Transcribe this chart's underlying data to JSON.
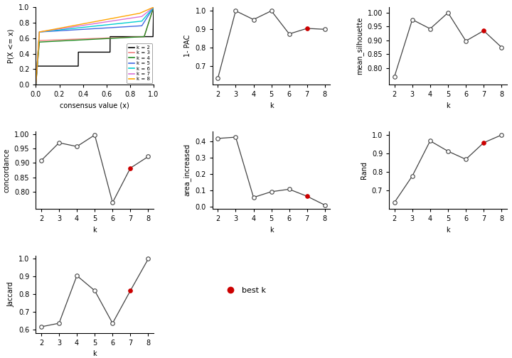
{
  "ecdf_colors": {
    "k2": "#000000",
    "k3": "#F08080",
    "k4": "#228B22",
    "k5": "#4169E1",
    "k6": "#00CED1",
    "k7": "#DA70D6",
    "k8": "#FFA500"
  },
  "one_pac": {
    "k": [
      2,
      3,
      4,
      5,
      6,
      7,
      8
    ],
    "y": [
      0.635,
      1.0,
      0.953,
      1.0,
      0.875,
      0.905,
      0.9
    ],
    "best_k": 7
  },
  "mean_silhouette": {
    "k": [
      2,
      3,
      4,
      5,
      6,
      7,
      8
    ],
    "y": [
      0.77,
      0.975,
      0.942,
      1.0,
      0.898,
      0.935,
      0.875
    ],
    "best_k": 7
  },
  "concordance": {
    "k": [
      2,
      3,
      4,
      5,
      6,
      7,
      8
    ],
    "y": [
      0.908,
      0.97,
      0.957,
      0.997,
      0.762,
      0.882,
      0.922
    ],
    "best_k": 7
  },
  "area_increased": {
    "k": [
      2,
      3,
      4,
      5,
      6,
      7,
      8
    ],
    "y": [
      0.416,
      0.424,
      0.055,
      0.09,
      0.105,
      0.062,
      0.008
    ],
    "best_k": 7
  },
  "rand": {
    "k": [
      2,
      3,
      4,
      5,
      6,
      7,
      8
    ],
    "y": [
      0.635,
      0.778,
      0.968,
      0.912,
      0.868,
      0.958,
      1.0
    ],
    "best_k": 7
  },
  "jaccard": {
    "k": [
      2,
      3,
      4,
      5,
      6,
      7,
      8
    ],
    "y": [
      0.615,
      0.635,
      0.905,
      0.82,
      0.635,
      0.82,
      1.0
    ],
    "best_k": 7
  },
  "best_k_color": "#CC0000",
  "line_color": "#444444"
}
